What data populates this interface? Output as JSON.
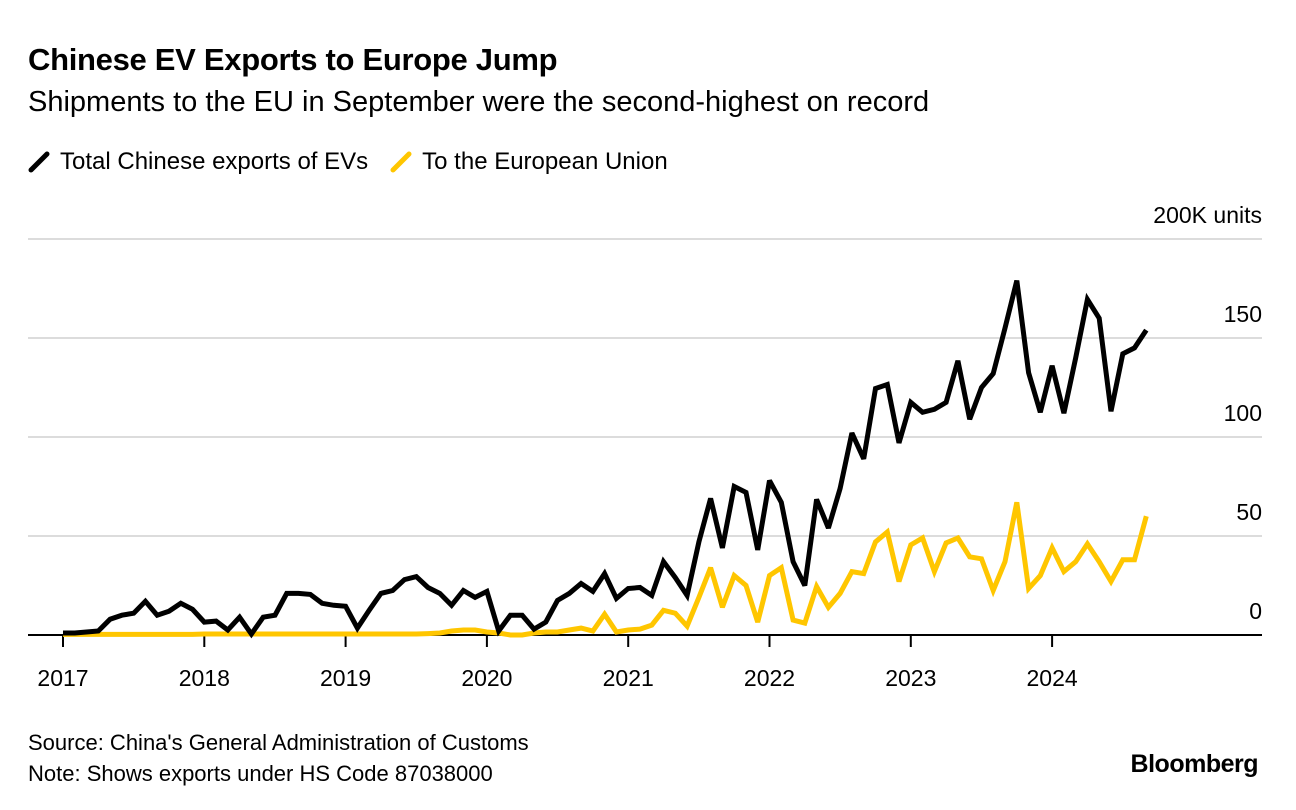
{
  "title": "Chinese EV Exports to Europe Jump",
  "subtitle": "Shipments to the EU in September were the second-highest on record",
  "footer": {
    "source": "Source: China's General Administration of Customs",
    "note": "Note: Shows exports under HS Code 87038000"
  },
  "logo": "Bloomberg",
  "chart_data": {
    "type": "line",
    "title": "Chinese EV Exports to Europe Jump",
    "xlabel": "",
    "ylabel": "200K units",
    "x_start": "2017-01",
    "frequency": "monthly",
    "ylim": [
      0,
      200
    ],
    "y_ticks": [
      0,
      50,
      100,
      150,
      200
    ],
    "y_tick_labels": [
      "0",
      "50",
      "100",
      "150",
      "200K units"
    ],
    "x_tick_labels": [
      "2017",
      "2018",
      "2019",
      "2020",
      "2021",
      "2022",
      "2023",
      "2024"
    ],
    "grid": true,
    "legend_position": "top-left",
    "series": [
      {
        "name": "Total Chinese exports of EVs",
        "color": "#000000",
        "values": [
          1,
          1,
          1.5,
          2,
          8,
          10,
          11,
          17,
          10,
          12,
          16,
          13,
          6.5,
          7,
          2.5,
          9,
          0.5,
          9,
          10,
          21,
          21,
          20.5,
          16,
          15,
          14.5,
          3.5,
          12.5,
          21,
          22.5,
          28,
          29.5,
          24,
          21,
          15,
          22.5,
          19,
          22,
          2,
          10,
          10,
          3,
          6.5,
          17.5,
          21,
          26,
          22,
          31,
          18.5,
          23.5,
          24,
          20,
          37,
          29,
          20,
          47,
          69,
          44,
          75,
          72,
          43,
          78,
          67,
          37,
          25,
          68.5,
          54,
          74,
          102,
          89,
          124.5,
          126.5,
          97,
          117.5,
          112.5,
          114,
          117.5,
          138.5,
          109,
          125,
          132,
          155,
          179,
          132.5,
          112.5,
          136,
          112,
          140,
          169.5,
          160,
          113,
          142,
          145,
          154
        ]
      },
      {
        "name": "To the European Union",
        "color": "#FFC600",
        "values": [
          0.3,
          0.3,
          0.3,
          0.3,
          0.3,
          0.3,
          0.3,
          0.3,
          0.3,
          0.3,
          0.3,
          0.3,
          0.5,
          0.5,
          0.5,
          0.5,
          0.5,
          0.5,
          0.5,
          0.5,
          0.5,
          0.5,
          0.5,
          0.5,
          0.5,
          0.5,
          0.5,
          0.5,
          0.5,
          0.5,
          0.5,
          0.7,
          1,
          2,
          2.5,
          2.5,
          1.5,
          1,
          0,
          0,
          1,
          1.5,
          1.5,
          2.5,
          3.5,
          2,
          10.5,
          1.5,
          2.5,
          3,
          5,
          12.5,
          11,
          4.5,
          19,
          34,
          14,
          30,
          25,
          6.5,
          30,
          34,
          7.5,
          6,
          24.5,
          14,
          21,
          32,
          31,
          47,
          52,
          27,
          45.5,
          49,
          32,
          46.5,
          49,
          39.5,
          38.5,
          22.5,
          37,
          67,
          23.5,
          30,
          44,
          32,
          37,
          46,
          37,
          27,
          38,
          38,
          60
        ]
      }
    ]
  }
}
